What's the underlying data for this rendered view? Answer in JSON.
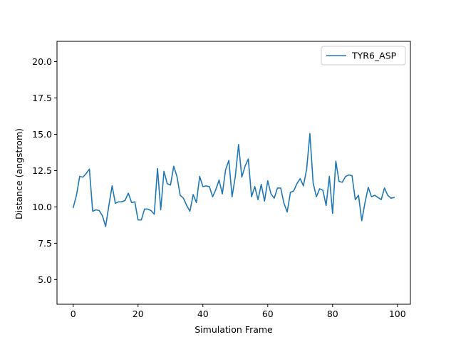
{
  "chart_data": {
    "type": "line",
    "title": "",
    "xlabel": "Simulation Frame",
    "ylabel": "Distance (angstrom)",
    "xlim": [
      -5,
      104
    ],
    "ylim": [
      3.3,
      21.4
    ],
    "xticks": [
      0,
      20,
      40,
      60,
      80,
      100
    ],
    "xtick_labels": [
      "0",
      "20",
      "40",
      "60",
      "80",
      "100"
    ],
    "yticks": [
      5.0,
      7.5,
      10.0,
      12.5,
      15.0,
      17.5,
      20.0
    ],
    "ytick_labels": [
      "5.0",
      "7.5",
      "10.0",
      "12.5",
      "15.0",
      "17.5",
      "20.0"
    ],
    "grid": false,
    "legend_position": "top-right",
    "series": [
      {
        "name": "TYR6_ASP",
        "color": "#1f77b4",
        "x": [
          0,
          1,
          2,
          3,
          4,
          5,
          6,
          7,
          8,
          9,
          10,
          11,
          12,
          13,
          14,
          15,
          16,
          17,
          18,
          19,
          20,
          21,
          22,
          23,
          24,
          25,
          26,
          27,
          28,
          29,
          30,
          31,
          32,
          33,
          34,
          35,
          36,
          37,
          38,
          39,
          40,
          41,
          42,
          43,
          44,
          45,
          46,
          47,
          48,
          49,
          50,
          51,
          52,
          53,
          54,
          55,
          56,
          57,
          58,
          59,
          60,
          61,
          62,
          63,
          64,
          65,
          66,
          67,
          68,
          69,
          70,
          71,
          72,
          73,
          74,
          75,
          76,
          77,
          78,
          79,
          80,
          81,
          82,
          83,
          84,
          85,
          86,
          87,
          88,
          89,
          90,
          91,
          92,
          93,
          94,
          95,
          96,
          97,
          98,
          99
        ],
        "values": [
          9.95,
          10.8,
          12.1,
          12.05,
          12.3,
          12.6,
          9.7,
          9.8,
          9.75,
          9.4,
          8.65,
          10.1,
          11.45,
          10.25,
          10.35,
          10.35,
          10.45,
          10.95,
          10.3,
          10.35,
          9.1,
          9.1,
          9.85,
          9.85,
          9.75,
          9.5,
          12.65,
          9.8,
          12.45,
          11.6,
          11.5,
          12.8,
          12.1,
          10.8,
          10.6,
          10.1,
          9.7,
          10.85,
          10.3,
          12.1,
          11.4,
          11.45,
          11.4,
          10.7,
          11.2,
          11.85,
          10.9,
          12.55,
          13.2,
          10.7,
          12.1,
          14.3,
          12.05,
          12.8,
          13.3,
          10.7,
          11.4,
          10.5,
          11.55,
          10.4,
          11.8,
          10.9,
          10.6,
          11.3,
          11.3,
          10.25,
          9.65,
          11.0,
          11.1,
          11.6,
          11.95,
          11.45,
          12.6,
          15.05,
          11.65,
          10.7,
          11.25,
          11.15,
          10.1,
          12.1,
          9.55,
          13.15,
          11.75,
          11.7,
          12.1,
          12.2,
          12.15,
          10.5,
          10.8,
          9.05,
          10.3,
          11.35,
          10.7,
          10.8,
          10.65,
          10.5,
          11.3,
          10.8,
          10.6,
          10.65
        ]
      }
    ]
  }
}
